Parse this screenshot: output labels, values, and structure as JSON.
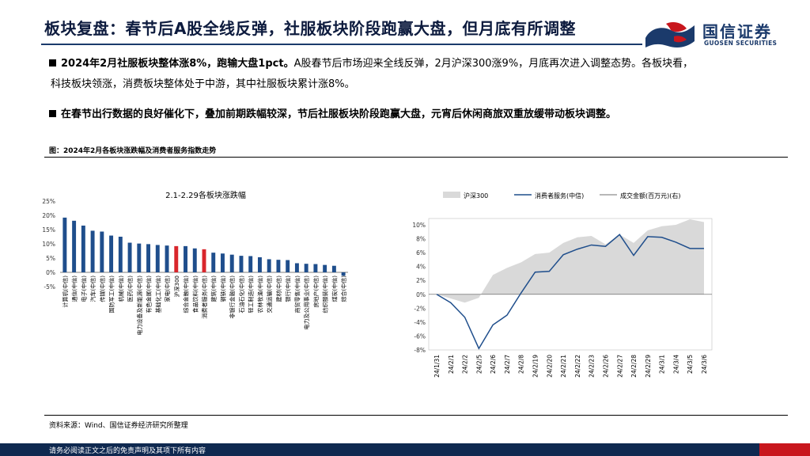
{
  "title": "板块复盘：春节后A股全线反弹，社服板块阶段跑赢大盘，但月底有所调整",
  "logo": {
    "name": "国信证券",
    "sub": "GUOSEN SECURITIES"
  },
  "bullets": {
    "b1_bold": "2024年2月社服板块整体涨8%，跑输大盘1pct。",
    "b1_rest": "A股春节后市场迎来全线反弹，2月沪深300涨9%，月底再次进入调整态势。各板块看，",
    "b1_cont": "科技板块领涨，消费板块整体处于中游，其中社服板块累计涨8%。",
    "b2": "在春节出行数据的良好催化下，叠加前期跌幅较深，节后社服板块阶段跑赢大盘，元宵后休闲商旅双重放缓带动板块调整。"
  },
  "figure_caption": "图：2024年2月各板块涨跌幅及消费者服务指数走势",
  "source": "资料来源：Wind、国信证券经济研究所整理",
  "footer": "请务必阅读正文之后的免责声明及其项下所有内容",
  "colors": {
    "navy": "#1b3a6b",
    "bar": "#1f4e8c",
    "highlight": "#d9262c",
    "area": "#d9d9d9",
    "line": "#1f4e8c"
  },
  "chart_data": [
    {
      "type": "bar",
      "title": "2.1-2.29各板块涨跌幅",
      "ylim": [
        -5,
        25
      ],
      "yticks": [
        "25%",
        "20%",
        "15%",
        "10%",
        "5%",
        "0%",
        "-5%"
      ],
      "categories": [
        "计算机(中信)",
        "通信(中信)",
        "电子(中信)",
        "汽车(中信)",
        "传媒(中信)",
        "国防军工(中信)",
        "机械(中信)",
        "医药(中信)",
        "电力设备及新能源(中信)",
        "有色金属(中信)",
        "基础化工(中信)",
        "家电(中信)",
        "沪深300",
        "综合金融(中信)",
        "食品饮料(中信)",
        "消费者服务(中信)",
        "建筑(中信)",
        "钢铁(中信)",
        "非银行金融(中信)",
        "石油石化(中信)",
        "轻工制造(中信)",
        "农林牧渔(中信)",
        "交通运输(中信)",
        "建材(中信)",
        "银行(中信)",
        "商贸零售(中信)",
        "电力及公用事业(中信)",
        "房地产(中信)",
        "纺织服装(中信)",
        "煤炭(中信)",
        "综合(中信)"
      ],
      "values": [
        19.2,
        18.1,
        16.4,
        14.6,
        14.3,
        12.9,
        12.5,
        10.4,
        10.1,
        9.9,
        9.6,
        9.4,
        9.2,
        9.2,
        8.4,
        8.1,
        6.9,
        6.6,
        6.2,
        5.8,
        5.7,
        5.3,
        4.6,
        4.4,
        4.3,
        3.2,
        3.0,
        2.9,
        2.6,
        2.3,
        -1.2
      ],
      "highlight": [
        "沪深300",
        "消费者服务(中信)"
      ]
    },
    {
      "type": "line",
      "legend": [
        "沪深300",
        "消费者服务(中信)",
        "成交金额(百万元)(右)"
      ],
      "ylim": [
        -8,
        10
      ],
      "yticks": [
        "10%",
        "8%",
        "6%",
        "4%",
        "2%",
        "0%",
        "-2%",
        "-4%",
        "-6%",
        "-8%"
      ],
      "x": [
        "24/1/31",
        "24/2/1",
        "24/2/2",
        "24/2/5",
        "24/2/6",
        "24/2/7",
        "24/2/8",
        "24/2/19",
        "24/2/20",
        "24/2/21",
        "24/2/22",
        "24/2/23",
        "24/2/26",
        "24/2/27",
        "24/2/28",
        "24/2/29",
        "24/3/1",
        "24/3/4",
        "24/3/5",
        "24/3/6"
      ],
      "series": [
        {
          "name": "沪深300",
          "values": [
            0,
            -0.6,
            -1.2,
            -0.5,
            2.8,
            3.8,
            4.6,
            5.8,
            6.0,
            7.4,
            8.2,
            8.4,
            7.2,
            8.6,
            7.4,
            9.2,
            9.8,
            10.0,
            10.8,
            10.4
          ]
        },
        {
          "name": "消费者服务(中信)",
          "values": [
            0,
            -1.2,
            -3.3,
            -7.8,
            -4.4,
            -3.0,
            0.2,
            3.2,
            3.3,
            5.7,
            6.5,
            7.1,
            6.9,
            8.6,
            5.6,
            8.3,
            8.2,
            7.5,
            6.6,
            6.6
          ]
        }
      ]
    }
  ]
}
